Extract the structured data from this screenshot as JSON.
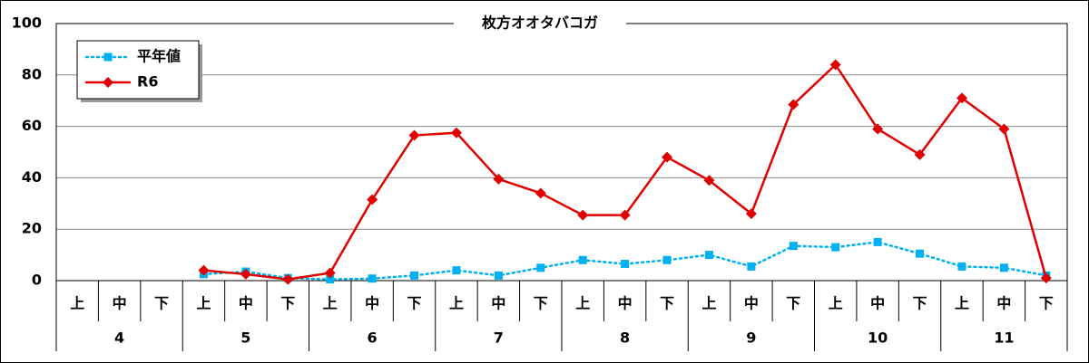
{
  "chart_data": {
    "type": "line",
    "title": "枚方オオタバコガ",
    "categories": [
      "上",
      "中",
      "下",
      "上",
      "中",
      "下",
      "上",
      "中",
      "下",
      "上",
      "中",
      "下",
      "上",
      "中",
      "下",
      "上",
      "中",
      "下",
      "上",
      "中",
      "下",
      "上",
      "中",
      "下"
    ],
    "groups": [
      "4",
      "5",
      "6",
      "7",
      "8",
      "9",
      "10",
      "11"
    ],
    "series": [
      {
        "name": "平年値",
        "color": "#00b0f0",
        "marker": "square",
        "dash": true,
        "values": [
          null,
          null,
          null,
          2.5,
          3.5,
          1,
          0.5,
          0.8,
          2,
          4,
          2,
          5,
          8,
          6.5,
          8,
          10,
          5.5,
          13.5,
          13,
          15,
          10.5,
          5.5,
          5,
          2
        ]
      },
      {
        "name": "R6",
        "color": "#e00000",
        "marker": "diamond",
        "dash": false,
        "values": [
          null,
          null,
          null,
          4,
          2.5,
          0.5,
          3,
          31.5,
          56.5,
          57.5,
          39.5,
          34,
          25.5,
          25.5,
          48,
          39,
          26,
          68.5,
          84,
          59,
          49,
          71,
          59,
          1
        ]
      }
    ],
    "ylim": [
      0,
      100
    ],
    "yticks": [
      0,
      20,
      40,
      60,
      80,
      100
    ],
    "grid": true,
    "legend": "upper left"
  }
}
